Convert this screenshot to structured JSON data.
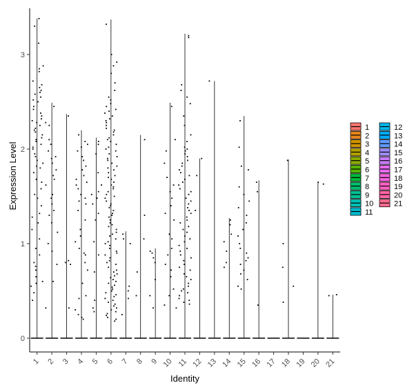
{
  "chart_data": {
    "type": "violin",
    "xlabel": "Identity",
    "ylabel": "Expression Level",
    "categories": [
      "1",
      "2",
      "3",
      "4",
      "5",
      "6",
      "7",
      "8",
      "9",
      "10",
      "11",
      "12",
      "13",
      "14",
      "15",
      "16",
      "17",
      "18",
      "19",
      "20",
      "21"
    ],
    "yticks": [
      0,
      1,
      2,
      3
    ],
    "ylim": [
      -0.15,
      3.45
    ],
    "grid": false,
    "legend_position": "right",
    "series": [
      {
        "name": "1",
        "color": "#F8766D",
        "max": 3.38,
        "points": [
          3.38,
          3.3,
          3.12,
          2.88,
          2.85,
          2.82,
          2.72,
          2.68,
          2.65,
          2.62,
          2.6,
          2.58,
          2.55,
          2.52,
          2.5,
          2.45,
          2.42,
          2.38,
          2.35,
          2.32,
          2.3,
          2.28,
          2.25,
          2.22,
          2.2,
          2.18,
          2.15,
          2.12,
          2.1,
          2.08,
          2.05,
          2.02,
          2.0,
          1.95,
          1.92,
          1.88,
          1.85,
          1.82,
          1.8,
          1.75,
          1.68,
          1.65,
          1.58,
          1.52,
          1.48,
          1.4,
          1.32,
          1.28,
          1.22,
          1.15,
          1.05,
          0.95,
          0.88,
          0.8,
          0.76,
          0.72,
          0.65,
          0.6,
          0.58,
          0.55,
          0.48,
          0.4
        ]
      },
      {
        "name": "2",
        "color": "#E7851E",
        "max": 2.49,
        "points": [
          2.45,
          2.28,
          2.25,
          2.1,
          2.05,
          1.98,
          1.92,
          1.9,
          1.85,
          1.78,
          1.72,
          1.68,
          1.62,
          1.52,
          1.48,
          1.42,
          1.35,
          1.3,
          1.22,
          1.12,
          1.0,
          0.92,
          0.78,
          0.6,
          0.32
        ]
      },
      {
        "name": "3",
        "color": "#D09400",
        "max": 2.37,
        "points": [
          2.35,
          0.82,
          0.8,
          0.78,
          0.32
        ]
      },
      {
        "name": "4",
        "color": "#B2A100",
        "max": 2.2,
        "points": [
          2.15,
          2.08,
          2.05,
          2.02,
          1.98,
          1.92,
          1.88,
          1.82,
          1.78,
          1.72,
          1.68,
          1.65,
          1.62,
          1.58,
          1.52,
          1.48,
          1.45,
          1.42,
          1.35,
          1.25,
          1.15,
          1.08,
          1.02,
          0.95,
          0.9,
          0.88,
          0.8,
          0.72,
          0.58,
          0.45,
          0.42,
          0.3,
          0.25,
          0.22,
          0.2
        ]
      },
      {
        "name": "5",
        "color": "#8BAB00",
        "max": 2.12,
        "points": [
          2.08,
          2.05,
          1.95,
          1.75,
          1.62,
          1.55,
          1.52,
          1.48,
          1.42,
          1.32,
          1.25,
          1.02,
          0.88,
          0.7,
          0.4,
          0.32,
          0.28
        ]
      },
      {
        "name": "6",
        "color": "#55B400",
        "max": 3.37,
        "points": [
          3.32,
          3.0,
          2.92,
          2.88,
          2.8,
          2.7,
          2.62,
          2.55,
          2.52,
          2.48,
          2.45,
          2.42,
          2.4,
          2.38,
          2.35,
          2.32,
          2.3,
          2.28,
          2.25,
          2.22,
          2.2,
          2.18,
          2.15,
          2.12,
          2.1,
          2.08,
          2.05,
          2.02,
          2.0,
          1.98,
          1.95,
          1.92,
          1.9,
          1.88,
          1.85,
          1.82,
          1.8,
          1.78,
          1.75,
          1.72,
          1.7,
          1.68,
          1.65,
          1.62,
          1.6,
          1.58,
          1.55,
          1.52,
          1.5,
          1.48,
          1.45,
          1.42,
          1.4,
          1.38,
          1.35,
          1.32,
          1.3,
          1.28,
          1.25,
          1.22,
          1.2,
          1.18,
          1.15,
          1.12,
          1.1,
          1.08,
          1.05,
          1.02,
          1.0,
          0.98,
          0.95,
          0.92,
          0.9,
          0.88,
          0.85,
          0.82,
          0.8,
          0.78,
          0.75,
          0.72,
          0.7,
          0.68,
          0.66,
          0.64,
          0.62,
          0.6,
          0.58,
          0.56,
          0.54,
          0.52,
          0.5,
          0.48,
          0.46,
          0.44,
          0.42,
          0.4,
          0.38,
          0.36,
          0.34,
          0.32,
          0.3,
          0.28,
          0.26,
          0.24,
          0.22,
          0.2,
          0.18
        ]
      },
      {
        "name": "7",
        "color": "#00BA38",
        "max": 1.13,
        "points": [
          1.1,
          1.05,
          1.0,
          0.55,
          0.5,
          0.42,
          0.25
        ]
      },
      {
        "name": "8",
        "color": "#00BE6C",
        "max": 2.15,
        "points": [
          2.1,
          1.3,
          1.05,
          0.7,
          0.45
        ]
      },
      {
        "name": "9",
        "color": "#00C094",
        "max": 0.95,
        "points": [
          0.92,
          0.9,
          0.85,
          0.8,
          0.62,
          0.45,
          0.32
        ]
      },
      {
        "name": "10",
        "color": "#00C0B5",
        "max": 2.49,
        "points": [
          2.45,
          2.1,
          1.98,
          1.85,
          1.7,
          1.62,
          1.55,
          1.48,
          1.4,
          1.32,
          1.25,
          1.1,
          1.05,
          0.95,
          0.88,
          0.78,
          0.72,
          0.65,
          0.52,
          0.45,
          0.35,
          0.32
        ]
      },
      {
        "name": "11",
        "color": "#00BCD1",
        "max": 3.22,
        "points": [
          3.2,
          3.18,
          2.68,
          2.62,
          2.55,
          2.48,
          2.35,
          2.25,
          2.15,
          2.08,
          2.02,
          2.0,
          1.98,
          1.95,
          1.92,
          1.88,
          1.85,
          1.82,
          1.78,
          1.75,
          1.72,
          1.68,
          1.65,
          1.62,
          1.58,
          1.55,
          1.52,
          1.48,
          1.45,
          1.42,
          1.38,
          1.35,
          1.32,
          1.28,
          1.25,
          1.22,
          1.18,
          1.15,
          1.12,
          1.08,
          1.05,
          1.02,
          0.98,
          0.95,
          0.92,
          0.88,
          0.85,
          0.82,
          0.78,
          0.75,
          0.72,
          0.68,
          0.65,
          0.62,
          0.58,
          0.55,
          0.52,
          0.5,
          0.48,
          0.45,
          0.42,
          0.4,
          0.38,
          0.36
        ]
      },
      {
        "name": "12",
        "color": "#00B6EB",
        "max": 1.9,
        "points": [
          1.9,
          1.72,
          1.35
        ]
      },
      {
        "name": "13",
        "color": "#00ABFD",
        "max": 2.72,
        "points": [
          2.72
        ]
      },
      {
        "name": "14",
        "color": "#619CFF",
        "max": 1.27,
        "points": [
          1.25,
          1.2,
          1.1,
          1.02,
          0.92,
          0.8,
          0.75
        ]
      },
      {
        "name": "15",
        "color": "#9F8CFF",
        "max": 2.35,
        "points": [
          2.3,
          2.02,
          1.82,
          1.78,
          1.6,
          1.52,
          1.45,
          1.38,
          1.3,
          1.22,
          1.15,
          1.08,
          1.0,
          0.95,
          0.9,
          0.85,
          0.82,
          0.78,
          0.72,
          0.68,
          0.62,
          0.55,
          0.52
        ]
      },
      {
        "name": "16",
        "color": "#C77CFF",
        "max": 1.67,
        "points": [
          1.65,
          1.55,
          0.35
        ]
      },
      {
        "name": "17",
        "color": "#E76BF3",
        "max": 0.0,
        "points": []
      },
      {
        "name": "18",
        "color": "#F763E0",
        "max": 1.89,
        "points": [
          1.88,
          1.0,
          0.75,
          0.55,
          0.38
        ]
      },
      {
        "name": "19",
        "color": "#FF61C3",
        "max": 0.0,
        "points": []
      },
      {
        "name": "20",
        "color": "#FF65A4",
        "max": 1.65,
        "points": [
          1.65,
          1.63
        ]
      },
      {
        "name": "21",
        "color": "#FF6C90",
        "max": 0.46,
        "points": [
          0.46,
          0.45
        ]
      }
    ]
  }
}
